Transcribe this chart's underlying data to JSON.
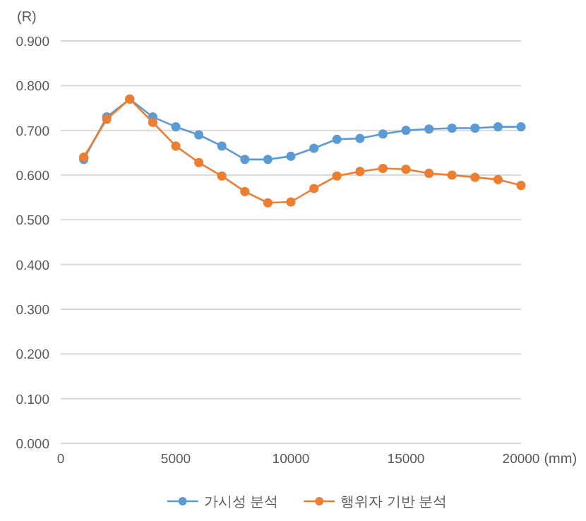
{
  "chart_data": {
    "type": "line",
    "xlabel": "(mm)",
    "ylabel": "(R)",
    "x": [
      1000,
      2000,
      3000,
      4000,
      5000,
      6000,
      7000,
      8000,
      9000,
      10000,
      11000,
      12000,
      13000,
      14000,
      15000,
      16000,
      17000,
      18000,
      19000,
      20000
    ],
    "series": [
      {
        "name": "가시성 분석",
        "color": "#5b9bd5",
        "values": [
          0.635,
          0.73,
          0.77,
          0.73,
          0.708,
          0.69,
          0.665,
          0.635,
          0.635,
          0.642,
          0.66,
          0.68,
          0.682,
          0.692,
          0.7,
          0.703,
          0.705,
          0.705,
          0.708,
          0.708
        ]
      },
      {
        "name": "행위자 기반 분석",
        "color": "#ed7d31",
        "values": [
          0.64,
          0.725,
          0.77,
          0.718,
          0.665,
          0.628,
          0.598,
          0.563,
          0.538,
          0.54,
          0.57,
          0.598,
          0.608,
          0.615,
          0.613,
          0.604,
          0.6,
          0.595,
          0.59,
          0.577
        ]
      }
    ],
    "xlim": [
      0,
      20000
    ],
    "xticks": [
      0,
      5000,
      10000,
      15000,
      20000
    ],
    "ylim": [
      0,
      0.9
    ],
    "yticks": [
      {
        "value": 0,
        "label": "0.000"
      },
      {
        "value": 0.1,
        "label": "0.100"
      },
      {
        "value": 0.2,
        "label": "0.200"
      },
      {
        "value": 0.3,
        "label": "0.300"
      },
      {
        "value": 0.4,
        "label": "0.400"
      },
      {
        "value": 0.5,
        "label": "0.500"
      },
      {
        "value": 0.6,
        "label": "0.600"
      },
      {
        "value": 0.7,
        "label": "0.700"
      },
      {
        "value": 0.8,
        "label": "0.800"
      },
      {
        "value": 0.9,
        "label": "0.900"
      }
    ],
    "grid": "y",
    "legend": "bottom",
    "marker": "circle",
    "line_style": "solid"
  }
}
